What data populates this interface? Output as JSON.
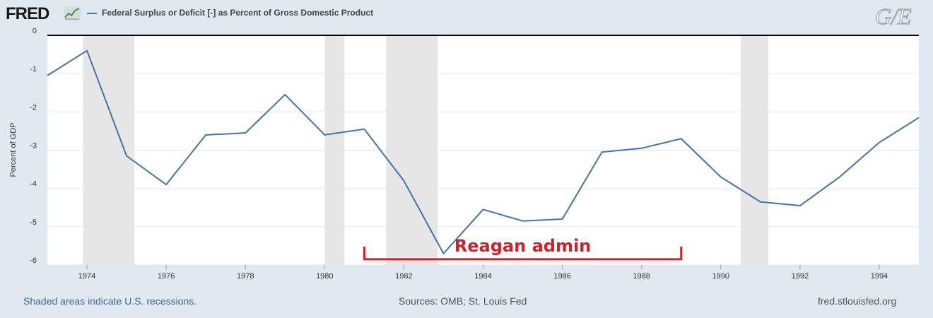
{
  "header": {
    "logo_text": "FRED",
    "chart_title": "Federal Surplus or Deficit [-] as Percent of Gross Domestic Product",
    "watermark_logo": "G/E"
  },
  "footer": {
    "recession_note": "Shaded areas indicate U.S. recessions.",
    "sources": "Sources: OMB; St. Louis Fed",
    "site": "fred.stlouisfed.org"
  },
  "colors": {
    "series": "#4572a7",
    "recession_shade": "#e6e6e6",
    "annotation": "#cc2229",
    "background": "#e1e9f0",
    "plot_background": "#ffffff"
  },
  "icons": [
    "fred-graph-icon",
    "ge-logo-icon"
  ],
  "chart_data": {
    "type": "line",
    "title": "Federal Surplus or Deficit [-] as Percent of Gross Domestic Product",
    "ylabel": "Percent of GDP",
    "xlabel": "",
    "xlim": [
      1973,
      1995
    ],
    "ylim": [
      -6,
      0
    ],
    "grid": true,
    "legend": "top-left",
    "x_ticks": [
      1974,
      1976,
      1978,
      1980,
      1982,
      1984,
      1986,
      1988,
      1990,
      1992,
      1994
    ],
    "y_ticks": [
      0,
      -1,
      -2,
      -3,
      -4,
      -5,
      -6
    ],
    "series": [
      {
        "name": "Federal Surplus or Deficit [-] as Percent of Gross Domestic Product",
        "x": [
          1973,
          1974,
          1975,
          1976,
          1977,
          1978,
          1979,
          1980,
          1981,
          1982,
          1983,
          1984,
          1985,
          1986,
          1987,
          1988,
          1989,
          1990,
          1991,
          1992,
          1993,
          1994,
          1995
        ],
        "y": [
          -1.05,
          -0.4,
          -3.15,
          -3.9,
          -2.6,
          -2.55,
          -1.55,
          -2.6,
          -2.45,
          -3.8,
          -5.7,
          -4.55,
          -4.85,
          -4.8,
          -3.05,
          -2.95,
          -2.7,
          -3.7,
          -4.35,
          -4.45,
          -3.7,
          -2.8,
          -2.15
        ]
      }
    ],
    "recessions": [
      {
        "start": 1973.9,
        "end": 1975.2
      },
      {
        "start": 1980.0,
        "end": 1980.5
      },
      {
        "start": 1981.55,
        "end": 1982.85
      },
      {
        "start": 1990.5,
        "end": 1991.2
      }
    ],
    "annotations": [
      {
        "text": "Reagan admin",
        "start": 1981,
        "end": 1989,
        "y": -5.85
      }
    ]
  }
}
